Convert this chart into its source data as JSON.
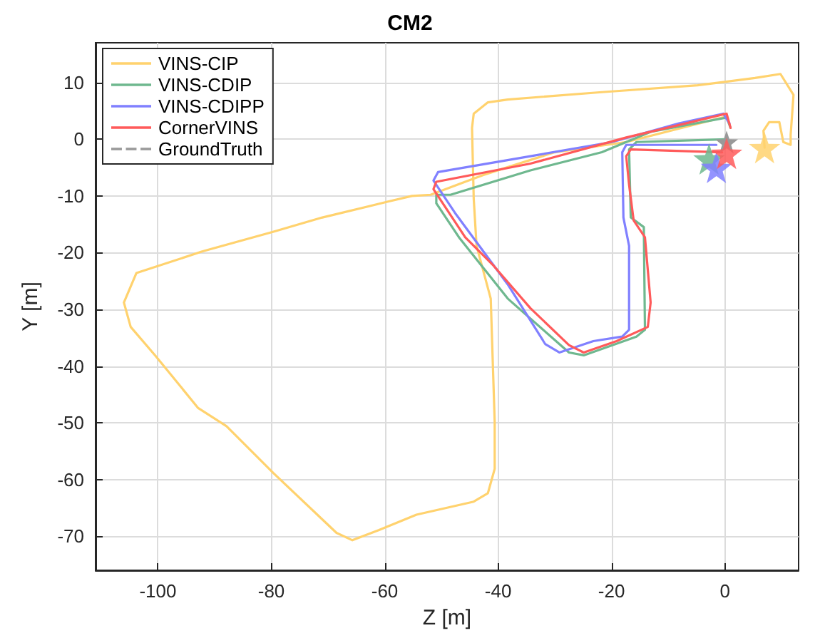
{
  "chart_data": {
    "type": "line",
    "title": "CM2",
    "xlabel": "Z [m]",
    "ylabel": "Y [m]",
    "xlim": [
      -111,
      13
    ],
    "xticks": [
      -100,
      -80,
      -60,
      -40,
      -20,
      0
    ],
    "ylim": [
      -76,
      17
    ],
    "yticks": [
      -70,
      -60,
      -50,
      -40,
      -30,
      -20,
      -10,
      0,
      10
    ],
    "grid": true,
    "legend": "top left",
    "marker": "none",
    "line_style": "solid",
    "series": [
      {
        "name": "VINS-CIP",
        "color": "#ffd26e",
        "x": [
          0.3,
          -17.4,
          -30,
          -42.6,
          -51.9,
          -55.2,
          -59.4,
          -71,
          -79.6,
          -92.2,
          -103.8,
          -106,
          -104.8,
          -100.5,
          -92.9,
          -87.9,
          -79.6,
          -68.5,
          -65.7,
          -61,
          -54.4,
          -44.3,
          -41.8,
          -40.6,
          -40.6,
          -41.3,
          -43.8,
          -44.3,
          -44.6,
          -44.3,
          -41.8,
          -38.3,
          -21.7,
          -4.8,
          5.3,
          9.8,
          12.1,
          11.6,
          11.6,
          10.3,
          9.6,
          7.8,
          6.8,
          7
        ],
        "values": [
          4.0,
          -0.5,
          -2.3,
          -6.3,
          -9.8,
          -10,
          -11,
          -13.8,
          -16.3,
          -19.8,
          -23.6,
          -28.8,
          -33.1,
          -38.1,
          -47.4,
          -50.6,
          -58.9,
          -69.4,
          -70.7,
          -68.9,
          -66.2,
          -63.9,
          -62.4,
          -58.1,
          -49.9,
          -28.1,
          -18.8,
          -10.5,
          2,
          4.5,
          6.5,
          7,
          8.3,
          9.5,
          10.8,
          11.5,
          7.8,
          0.8,
          -1,
          -0.5,
          3,
          3,
          1.5,
          -1.5
        ]
      },
      {
        "name": "VINS-CDIP",
        "color": "#6fb88f",
        "x": [
          0.5,
          -15.6,
          -16.9,
          -16.6,
          -14.3,
          -14.1,
          -15.6,
          -24.9,
          -27.5,
          -38.3,
          -46.9,
          -50.9,
          -50.9,
          -48.4,
          -34.3,
          -21.7,
          -13.1,
          0.3,
          1
        ],
        "values": [
          0,
          -0.5,
          -1.8,
          -13.8,
          -15.5,
          -33.6,
          -34.8,
          -38.1,
          -37.6,
          -28.1,
          -17.3,
          -11.3,
          -9.8,
          -9.8,
          -5.5,
          -2.3,
          1.3,
          3.8,
          2
        ]
      },
      {
        "name": "VINS-CDIPP",
        "color": "#8080ff",
        "x": [
          -1.5,
          -17.4,
          -18.1,
          -17.9,
          -16.9,
          -16.9,
          -18.1,
          -23.2,
          -29.2,
          -31.7,
          -38.3,
          -47.6,
          -51.4,
          -50.6,
          -34.3,
          -19.9,
          -8.1,
          -0.3,
          0.8
        ],
        "values": [
          -1,
          -1,
          -2.3,
          -13.8,
          -18.8,
          -33.6,
          -34.8,
          -35.6,
          -37.6,
          -36.1,
          -25.6,
          -13,
          -7.3,
          -5.8,
          -3,
          -0.5,
          2.8,
          4.5,
          2.8
        ]
      },
      {
        "name": "CornerVINS",
        "color": "#ff5a5a",
        "x": [
          -0.5,
          -16.6,
          -17.4,
          -16.9,
          -16.1,
          -14.1,
          -13.1,
          -13.6,
          -19.1,
          -24.9,
          -27.5,
          -34.3,
          -40.8,
          -45.8,
          -51.4,
          -50.9,
          -34.3,
          -17.4,
          -8.1,
          0.3,
          1
        ],
        "values": [
          -2.3,
          -1.8,
          -3,
          -8,
          -14.3,
          -17.3,
          -28.8,
          -33.1,
          -35.6,
          -37.6,
          -36.3,
          -29.8,
          -22.3,
          -17.3,
          -8.8,
          -7.5,
          -4.3,
          0.3,
          2.5,
          4.5,
          2
        ]
      },
      {
        "type": "scatter",
        "marker": "star",
        "x": [
          7,
          -2.8,
          -1.5,
          0.3
        ],
        "values": [
          -1.5,
          -3.5,
          -5,
          -2.5
        ],
        "colors": [
          "#ffd26e",
          "#6fb88f",
          "#8080ff",
          "#ff5a5a"
        ]
      },
      {
        "name": "GroundTruth",
        "color": "#999999",
        "line_style": "dashed",
        "marker": "star",
        "x": [
          0.3
        ],
        "values": [
          -0.5
        ]
      }
    ]
  }
}
